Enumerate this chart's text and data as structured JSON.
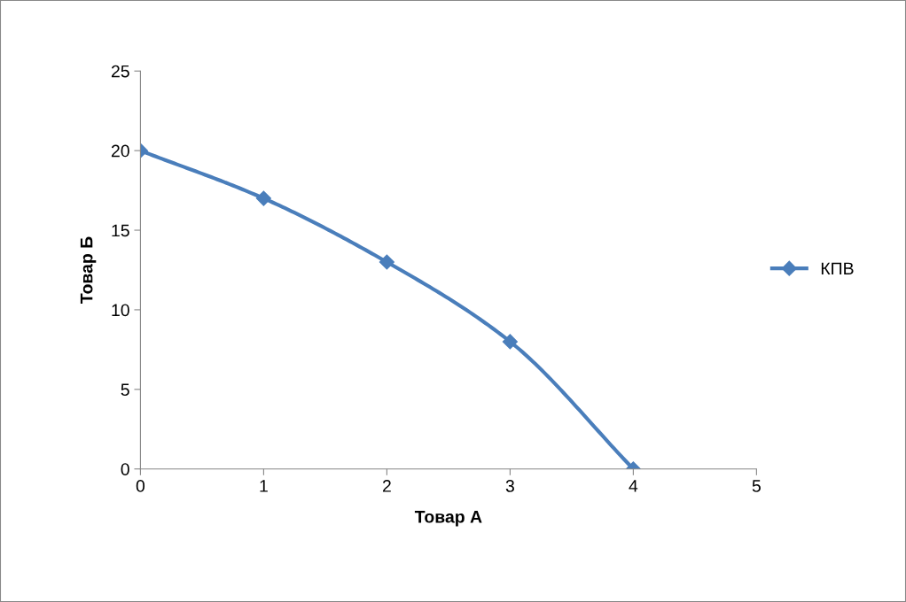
{
  "chart_data": {
    "type": "line",
    "xlabel": "Товар А",
    "ylabel": "Товар Б",
    "x": [
      0,
      1,
      2,
      3,
      4
    ],
    "series": [
      {
        "name": "КПВ",
        "color": "#4a7ebb",
        "values": [
          20,
          17,
          13,
          8,
          0
        ]
      }
    ],
    "xlim": [
      0,
      5
    ],
    "xticks": [
      0,
      1,
      2,
      3,
      4,
      5
    ],
    "ylim": [
      0,
      25
    ],
    "yticks": [
      0,
      5,
      10,
      15,
      20,
      25
    ],
    "marker": "diamond",
    "line_style": "solid",
    "legend": "right",
    "grid": false
  }
}
